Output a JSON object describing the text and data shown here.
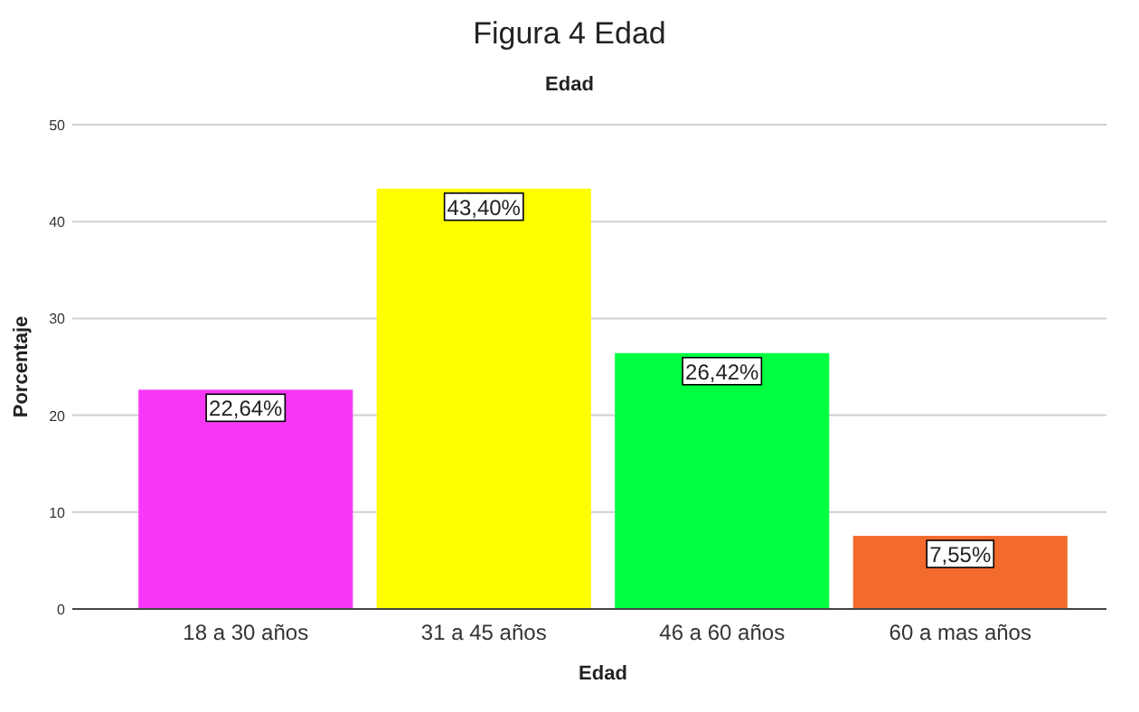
{
  "chart_data": {
    "type": "bar",
    "title": "Figura 4 Edad",
    "subtitle": "Edad",
    "xlabel": "Edad",
    "ylabel": "Porcentaje",
    "categories": [
      "18 a 30 años",
      "31 a 45 años",
      "46 a 60 años",
      "60 a mas años"
    ],
    "values": [
      22.64,
      43.4,
      26.42,
      7.55
    ],
    "colors": [
      "#f739f7",
      "#ffff00",
      "#00ff40",
      "#f26b2c"
    ],
    "value_labels": [
      "22,64%",
      "43,40%",
      "26,42%",
      "7,55%"
    ],
    "ylim": [
      0,
      50
    ],
    "yticks": [
      0,
      10,
      20,
      30,
      40,
      50
    ],
    "grid": "y"
  }
}
